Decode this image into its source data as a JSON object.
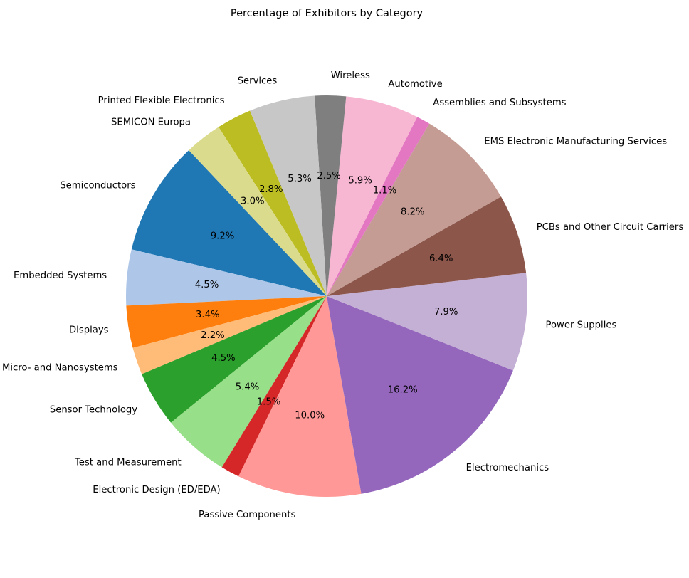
{
  "chart_data": {
    "type": "pie",
    "title": "Percentage of Exhibitors by Category",
    "start_angle_deg": 133.4,
    "direction": "counterclockwise",
    "slices": [
      {
        "label": "Semiconductors",
        "value": 9.2,
        "pct_text": "9.2%",
        "color": "#1f77b4"
      },
      {
        "label": "Embedded Systems",
        "value": 4.5,
        "pct_text": "4.5%",
        "color": "#aec7e8"
      },
      {
        "label": "Displays",
        "value": 3.4,
        "pct_text": "3.4%",
        "color": "#ff7f0e"
      },
      {
        "label": "Micro- and Nanosystems",
        "value": 2.2,
        "pct_text": "2.2%",
        "color": "#ffbb78"
      },
      {
        "label": "Sensor Technology",
        "value": 4.5,
        "pct_text": "4.5%",
        "color": "#2ca02c"
      },
      {
        "label": "Test and Measurement",
        "value": 5.4,
        "pct_text": "5.4%",
        "color": "#98df8a"
      },
      {
        "label": "Electronic Design (ED/EDA)",
        "value": 1.5,
        "pct_text": "1.5%",
        "color": "#d62728"
      },
      {
        "label": "Passive Components",
        "value": 10.0,
        "pct_text": "10.0%",
        "color": "#ff9896"
      },
      {
        "label": "Electromechanics",
        "value": 16.2,
        "pct_text": "16.2%",
        "color": "#9467bd"
      },
      {
        "label": "Power Supplies",
        "value": 7.9,
        "pct_text": "7.9%",
        "color": "#c5b0d5"
      },
      {
        "label": "PCBs and Other Circuit Carriers",
        "value": 6.4,
        "pct_text": "6.4%",
        "color": "#8c564b"
      },
      {
        "label": "EMS Electronic Manufacturing Services",
        "value": 8.2,
        "pct_text": "8.2%",
        "color": "#c49c94"
      },
      {
        "label": "Assemblies and Subsystems",
        "value": 1.1,
        "pct_text": "1.1%",
        "color": "#e377c2"
      },
      {
        "label": "Automotive",
        "value": 5.9,
        "pct_text": "5.9%",
        "color": "#f7b6d2"
      },
      {
        "label": "Wireless",
        "value": 2.5,
        "pct_text": "2.5%",
        "color": "#7f7f7f"
      },
      {
        "label": "Services",
        "value": 5.3,
        "pct_text": "5.3%",
        "color": "#c7c7c7"
      },
      {
        "label": "Printed Flexible Electronics",
        "value": 2.8,
        "pct_text": "2.8%",
        "color": "#bcbd22"
      },
      {
        "label": "SEMICON Europa",
        "value": 3.0,
        "pct_text": "3.0%",
        "color": "#dbdb8d"
      }
    ]
  }
}
